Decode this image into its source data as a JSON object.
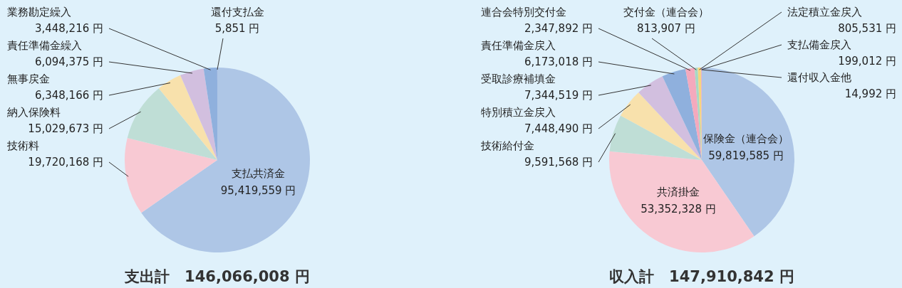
{
  "chart_data": [
    {
      "type": "pie",
      "title": "支出計　146,066,008 円",
      "categories": [
        "支払共済金",
        "技術料",
        "納入保険料",
        "無事戻金",
        "責任準備金繰入",
        "業務勘定繰入",
        "還付支払金"
      ],
      "values": [
        95419559,
        19720168,
        15029673,
        6348166,
        6094375,
        3448216,
        5851
      ],
      "value_labels": [
        "95,419,559 円",
        "19,720,168 円",
        "15,029,673 円",
        "6,348,166 円",
        "6,094,375 円",
        "3,448,216 円",
        "5,851 円"
      ],
      "colors": [
        "#aec6e6",
        "#f8c9d3",
        "#bfded6",
        "#f8e1ac",
        "#d2bfdf",
        "#8fb0dd",
        "#f4a9bd"
      ]
    },
    {
      "type": "pie",
      "title": "収入計　147,910,842 円",
      "categories": [
        "保険金（連合会）",
        "共済掛金",
        "技術給付金",
        "特別積立金戻入",
        "受取診療補填金",
        "責任準備金戻入",
        "連合会特別交付金",
        "交付金（連合会）",
        "法定積立金戻入",
        "支払備金戻入",
        "還付収入金他"
      ],
      "values": [
        59819585,
        53352328,
        9591568,
        7448490,
        7344519,
        6173018,
        2347892,
        813907,
        805531,
        199012,
        14992
      ],
      "value_labels": [
        "59,819,585 円",
        "53,352,328 円",
        "9,591,568 円",
        "7,448,490 円",
        "7,344,519 円",
        "6,173,018 円",
        "2,347,892 円",
        "813,907 円",
        "805,531 円",
        "199,012 円",
        "14,992 円"
      ],
      "colors": [
        "#aec6e6",
        "#f8c9d3",
        "#bfded6",
        "#f8e1ac",
        "#d2bfdf",
        "#8fb0dd",
        "#f4a9bd",
        "#a8d8c4",
        "#f6d57f",
        "#f4b3c4",
        "#5b86c7"
      ]
    }
  ]
}
